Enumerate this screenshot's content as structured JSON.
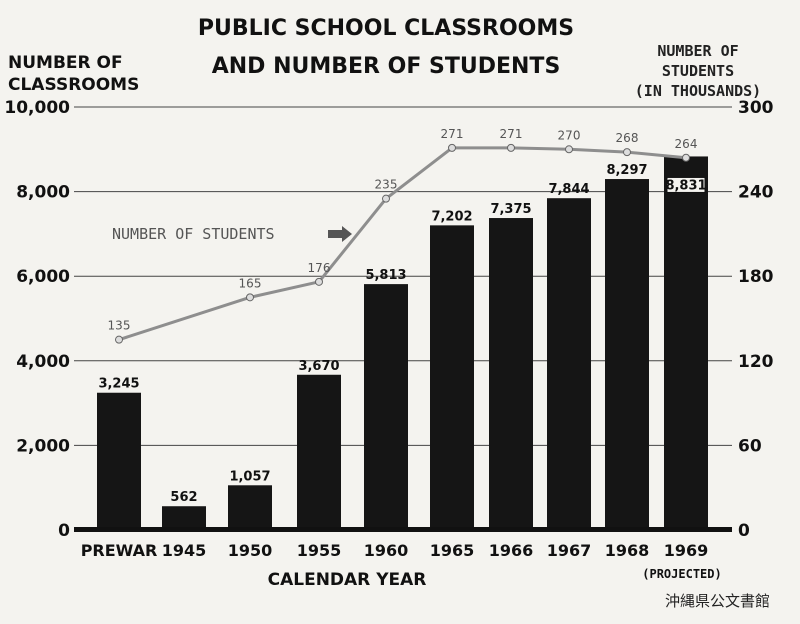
{
  "chart_data": {
    "type": "bar",
    "title_line1": "PUBLIC SCHOOL CLASSROOMS",
    "title_line2": "AND NUMBER OF STUDENTS",
    "left_axis_label_line1": "NUMBER OF",
    "left_axis_label_line2": "CLASSROOMS",
    "right_axis_label_line1": "NUMBER OF",
    "right_axis_label_line2": "STUDENTS",
    "right_axis_label_line3": "(IN THOUSANDS)",
    "xlabel": "CALENDAR YEAR",
    "categories": [
      "PREWAR",
      "1945",
      "1950",
      "1955",
      "1960",
      "1965",
      "1966",
      "1967",
      "1968",
      "1969"
    ],
    "category_note": "(PROJECTED)",
    "left_ylim": [
      0,
      10000
    ],
    "left_ticks": [
      "0",
      "2,000",
      "4,000",
      "6,000",
      "8,000",
      "10,000"
    ],
    "right_ylim": [
      0,
      300
    ],
    "right_ticks": [
      "0",
      "60",
      "120",
      "180",
      "240",
      "300"
    ],
    "grid": true,
    "series": [
      {
        "name": "NUMBER OF CLASSROOMS",
        "kind": "bar",
        "values": [
          3245,
          562,
          1057,
          3670,
          5813,
          7202,
          7375,
          7844,
          8297,
          8831
        ],
        "labels": [
          "3,245",
          "562",
          "1,057",
          "3,670",
          "5,813",
          "7,202",
          "7,375",
          "7,844",
          "8,297",
          "8,831"
        ]
      },
      {
        "name": "NUMBER OF STUDENTS",
        "kind": "line",
        "axis": "right",
        "x": [
          "PREWAR",
          "1950",
          "1955",
          "1960",
          "1965",
          "1966",
          "1967",
          "1968",
          "1969"
        ],
        "values": [
          135,
          165,
          176,
          235,
          271,
          271,
          270,
          268,
          264
        ],
        "labels": [
          "135",
          "165",
          "176",
          "235",
          "271",
          "271",
          "270",
          "268",
          "264"
        ]
      }
    ],
    "series_annotation": "NUMBER OF STUDENTS"
  },
  "stamp": "沖縄県公文書館",
  "colors": {
    "bar": "#151515",
    "line": "#8e8e8e",
    "grid": "#444444",
    "background": "#f4f3ef"
  }
}
